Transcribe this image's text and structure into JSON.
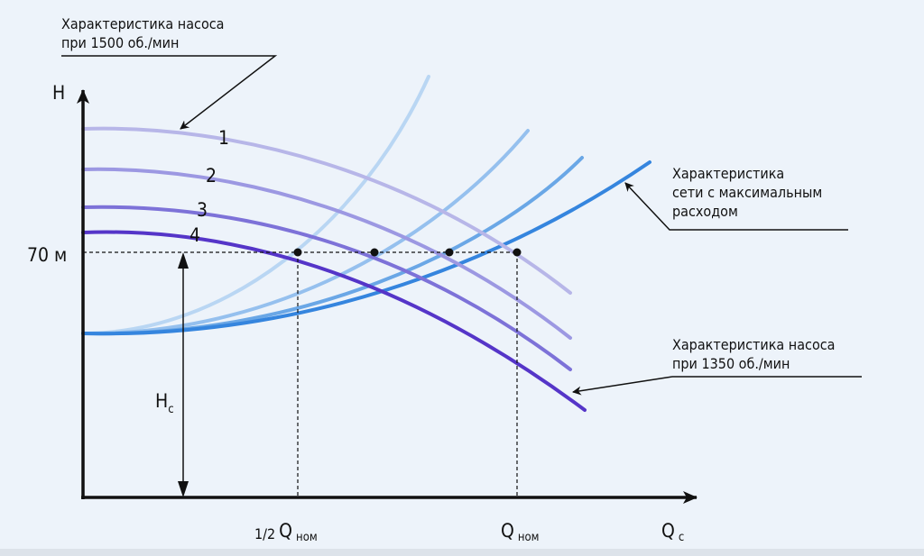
{
  "annotations": {
    "pump_1500": [
      "Характеристика насоса",
      "при 1500 об./мин"
    ],
    "network_max": [
      "Характеристика",
      "сети с максимальным",
      "расходом"
    ],
    "pump_1350": [
      "Характеристика насоса",
      "при 1350 об./мин"
    ]
  },
  "axes": {
    "y_label": "H",
    "x_label": "Q",
    "x_label_sub": "c",
    "level_label": "70 м",
    "hc_label": "H",
    "hc_sub": "c",
    "half_q_prefix": "1/2",
    "q_label": "Q",
    "q_sub": "ном"
  },
  "curve_numbers": [
    "1",
    "2",
    "3",
    "4"
  ],
  "colors": {
    "background": "#edf3fa",
    "pump_1": "#b7b6e8",
    "pump_2": "#9c98e2",
    "pump_3": "#7d72d8",
    "pump_4": "#5535c8",
    "system_1": "#b9d6f3",
    "system_2": "#95c0ee",
    "system_3": "#6aa7e6",
    "system_4": "#3585de"
  }
}
